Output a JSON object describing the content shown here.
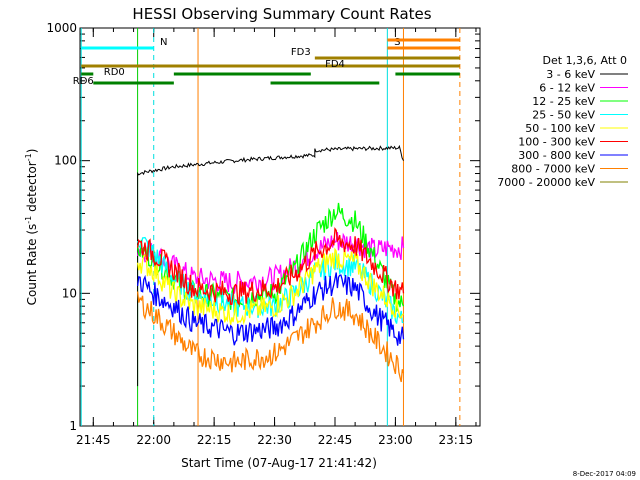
{
  "chart_data": {
    "type": "line",
    "title": "HESSI Observing Summary Count Rates",
    "xlabel": "Start Time (07-Aug-17 21:41:42)",
    "ylabel": "Count Rate (s⁻¹ detector⁻¹)",
    "ylabel_parts": {
      "main": "Count Rate (s",
      "exp1": "-1",
      "mid": " detector",
      "exp2": "-1",
      "end": ")"
    },
    "y_scale": "log",
    "ylim": [
      1,
      1000
    ],
    "xlim_minutes": [
      "21:41:42",
      "23:21:00"
    ],
    "x_ticks": [
      "21:45",
      "22:00",
      "22:15",
      "22:30",
      "22:45",
      "23:00",
      "23:15"
    ],
    "y_ticks": [
      "1",
      "10",
      "100",
      "1000"
    ],
    "legend_header": "Det 1,3,6, Att 0",
    "grid": false,
    "series": [
      {
        "name": "3 - 6 keV",
        "color": "#000000",
        "x": [
          "21:56",
          "21:56",
          "22:05",
          "22:20",
          "22:35",
          "22:40",
          "22:40",
          "22:50",
          "23:01",
          "23:02"
        ],
        "values": [
          2,
          80,
          90,
          100,
          108,
          110,
          120,
          123,
          125,
          100
        ]
      },
      {
        "name": "6 - 12 keV",
        "color": "#ff00ff",
        "x": [
          "21:56",
          "22:00",
          "22:05",
          "22:10",
          "22:20",
          "22:30",
          "22:35",
          "22:40",
          "22:45",
          "22:50",
          "22:55",
          "22:58",
          "23:02"
        ],
        "values": [
          22,
          20,
          16,
          13,
          12,
          13,
          16,
          21,
          25,
          24,
          21,
          22,
          22
        ]
      },
      {
        "name": "12 - 25 keV",
        "color": "#00ff00",
        "x": [
          "21:56",
          "22:00",
          "22:05",
          "22:10",
          "22:20",
          "22:30",
          "22:35",
          "22:40",
          "22:45",
          "22:50",
          "22:55",
          "23:00",
          "23:02"
        ],
        "values": [
          22,
          18,
          13,
          10,
          9,
          10,
          15,
          28,
          42,
          35,
          18,
          9,
          8
        ]
      },
      {
        "name": "25 - 50 keV",
        "color": "#00ffff",
        "x": [
          "21:56",
          "22:00",
          "22:05",
          "22:10",
          "22:20",
          "22:30",
          "22:35",
          "22:40",
          "22:45",
          "22:50",
          "22:55",
          "23:00",
          "23:02"
        ],
        "values": [
          27,
          20,
          13,
          10,
          8,
          8,
          10,
          14,
          17,
          16,
          11,
          7,
          6
        ]
      },
      {
        "name": "50 - 100 keV",
        "color": "#ffff00",
        "x": [
          "21:56",
          "22:00",
          "22:05",
          "22:10",
          "22:20",
          "22:30",
          "22:35",
          "22:40",
          "22:45",
          "22:50",
          "22:55",
          "23:00",
          "23:02"
        ],
        "values": [
          18,
          15,
          10,
          8,
          7,
          8,
          10,
          15,
          19,
          17,
          11,
          8,
          7
        ]
      },
      {
        "name": "100 - 300 keV",
        "color": "#ff0000",
        "x": [
          "21:56",
          "22:00",
          "22:05",
          "22:10",
          "22:20",
          "22:30",
          "22:35",
          "22:40",
          "22:45",
          "22:50",
          "22:55",
          "23:00",
          "23:02"
        ],
        "values": [
          24,
          20,
          15,
          11,
          10,
          11,
          14,
          20,
          25,
          23,
          16,
          11,
          10
        ]
      },
      {
        "name": "300 - 800 keV",
        "color": "#0000ff",
        "x": [
          "21:56",
          "22:00",
          "22:05",
          "22:10",
          "22:20",
          "22:30",
          "22:35",
          "22:40",
          "22:45",
          "22:50",
          "22:55",
          "23:00",
          "23:02"
        ],
        "values": [
          13,
          10,
          8,
          6,
          5,
          5.5,
          7,
          10,
          12,
          11,
          7,
          5,
          4.5
        ]
      },
      {
        "name": "800 - 7000 keV",
        "color": "#ff8000",
        "x": [
          "21:56",
          "22:00",
          "22:05",
          "22:10",
          "22:20",
          "22:30",
          "22:35",
          "22:40",
          "22:45",
          "22:50",
          "22:55",
          "23:00",
          "23:02"
        ],
        "values": [
          9,
          7,
          5,
          3.5,
          3,
          3.5,
          4.5,
          6,
          8,
          7,
          4.5,
          3,
          2.5
        ]
      },
      {
        "name": "7000 - 20000 keV",
        "color": "#808000",
        "x": [],
        "values": []
      }
    ],
    "vertical_markers": [
      {
        "time": "21:42",
        "color": "#00e0e0",
        "style": "solid"
      },
      {
        "time": "21:56",
        "color": "#00d000",
        "style": "solid"
      },
      {
        "time": "22:00",
        "color": "#00e0e0",
        "style": "dashed"
      },
      {
        "time": "22:11",
        "color": "#ff8000",
        "style": "solid"
      },
      {
        "time": "22:58",
        "color": "#00e0e0",
        "style": "solid"
      },
      {
        "time": "23:02",
        "color": "#ff8000",
        "style": "solid"
      },
      {
        "time": "23:16",
        "color": "#ff8000",
        "style": "dashed"
      }
    ],
    "segments": [
      {
        "label": "N",
        "color": "#00ffff",
        "row": "top",
        "start": "21:42",
        "end": "22:00"
      },
      {
        "label": "S",
        "color": "#ff8000",
        "row": "top",
        "start": "22:58",
        "end": "23:16"
      },
      {
        "label": "",
        "color": "#ff8000",
        "row": "top2",
        "start": "22:58",
        "end": "23:16"
      },
      {
        "label": "FD3",
        "color": "#a08000",
        "row": "fd3",
        "start": "22:40",
        "end": "23:16"
      },
      {
        "label": "FD4",
        "color": "#a08000",
        "row": "fd4",
        "start": "21:42",
        "end": "23:16"
      },
      {
        "label": "RD0",
        "color": "#008000",
        "row": "rd0",
        "start": "21:42",
        "end": "21:45"
      },
      {
        "label": "",
        "color": "#008000",
        "row": "rd0",
        "start": "22:05",
        "end": "22:39"
      },
      {
        "label": "",
        "color": "#008000",
        "row": "rd0",
        "start": "23:00",
        "end": "23:16"
      },
      {
        "label": "RD6",
        "color": "#008000",
        "row": "rd6",
        "start": "21:45",
        "end": "22:05"
      },
      {
        "label": "",
        "color": "#008000",
        "row": "rd6",
        "start": "22:29",
        "end": "22:56"
      }
    ]
  },
  "footer": {
    "timestamp": "8-Dec-2017 04:09"
  }
}
